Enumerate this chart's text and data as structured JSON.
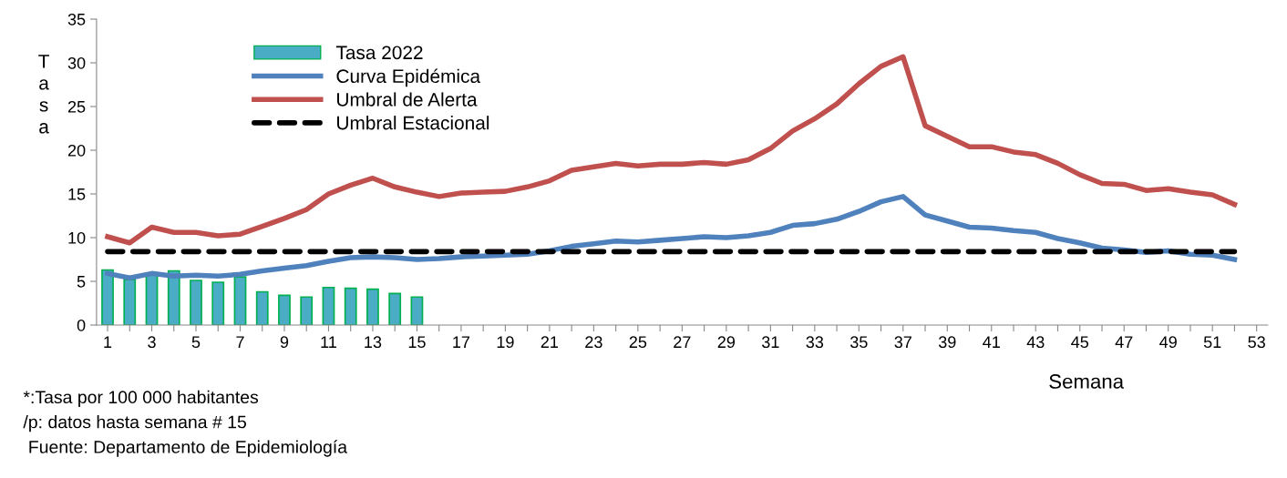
{
  "chart_data": {
    "type": "bar",
    "xlabel": "Semana",
    "ylabel": "Tasa",
    "categories": [
      "1",
      null,
      "3",
      null,
      "5",
      null,
      "7",
      null,
      "9",
      null,
      "11",
      null,
      "13",
      null,
      "15",
      null,
      "17",
      null,
      "19",
      null,
      "21",
      null,
      "23",
      null,
      "25",
      null,
      "27",
      null,
      "29",
      null,
      "31",
      null,
      "33",
      null,
      "35",
      null,
      "37",
      null,
      "39",
      null,
      "41",
      null,
      "43",
      null,
      "45",
      null,
      "47",
      null,
      "49",
      null,
      "51",
      null,
      "53"
    ],
    "series": [
      {
        "name": "Tasa 2022",
        "color": "#4bacc6",
        "values": [
          6.3,
          5.2,
          5.9,
          6.2,
          5.1,
          4.9,
          5.5,
          3.8,
          3.4,
          3.2,
          4.3,
          4.2,
          4.1,
          3.6,
          3.2,
          null,
          null,
          null,
          null,
          null,
          null,
          null,
          null,
          null,
          null,
          null,
          null,
          null,
          null,
          null,
          null,
          null,
          null,
          null,
          null,
          null,
          null,
          null,
          null,
          null,
          null,
          null,
          null,
          null,
          null,
          null,
          null,
          null,
          null,
          null,
          null,
          null,
          null
        ]
      },
      {
        "name": "Curva Epidémica",
        "type": "line",
        "color": "#4f81bd",
        "line_style": "solid",
        "values": [
          5.9,
          5.4,
          5.9,
          5.6,
          5.7,
          5.6,
          5.8,
          6.2,
          6.5,
          6.8,
          7.3,
          7.7,
          7.8,
          7.7,
          7.5,
          7.6,
          7.8,
          7.9,
          8.0,
          8.1,
          8.5,
          9.0,
          9.3,
          9.6,
          9.5,
          9.7,
          9.9,
          10.1,
          10.0,
          10.2,
          10.6,
          11.4,
          11.6,
          12.1,
          13.0,
          14.1,
          14.7,
          12.6,
          11.9,
          11.2,
          11.1,
          10.8,
          10.6,
          9.9,
          9.4,
          8.8,
          8.6,
          8.3,
          8.5,
          8.1,
          8.0,
          7.5,
          null
        ]
      },
      {
        "name": "Umbral de Alerta",
        "type": "line",
        "color": "#c0504d",
        "line_style": "solid",
        "values": [
          10.1,
          9.4,
          11.2,
          10.6,
          10.6,
          10.2,
          10.4,
          11.3,
          12.2,
          13.2,
          15.0,
          16.0,
          16.8,
          15.8,
          15.2,
          14.7,
          15.1,
          15.2,
          15.3,
          15.8,
          16.5,
          17.7,
          18.1,
          18.5,
          18.2,
          18.4,
          18.4,
          18.6,
          18.4,
          18.9,
          20.2,
          22.2,
          23.6,
          25.3,
          27.6,
          29.6,
          30.7,
          22.8,
          21.6,
          20.4,
          20.4,
          19.8,
          19.5,
          18.5,
          17.2,
          16.2,
          16.1,
          15.4,
          15.6,
          15.2,
          14.9,
          13.8,
          null
        ]
      },
      {
        "name": "Umbral Estacional",
        "type": "line",
        "color": "#000000",
        "line_style": "dashed",
        "values": [
          8.4,
          8.4,
          8.4,
          8.4,
          8.4,
          8.4,
          8.4,
          8.4,
          8.4,
          8.4,
          8.4,
          8.4,
          8.4,
          8.4,
          8.4,
          8.4,
          8.4,
          8.4,
          8.4,
          8.4,
          8.4,
          8.4,
          8.4,
          8.4,
          8.4,
          8.4,
          8.4,
          8.4,
          8.4,
          8.4,
          8.4,
          8.4,
          8.4,
          8.4,
          8.4,
          8.4,
          8.4,
          8.4,
          8.4,
          8.4,
          8.4,
          8.4,
          8.4,
          8.4,
          8.4,
          8.4,
          8.4,
          8.4,
          8.4,
          8.4,
          8.4,
          8.4,
          null
        ]
      }
    ],
    "ylim": [
      0,
      35
    ],
    "yticks": [
      0,
      5,
      10,
      15,
      20,
      25,
      30,
      35
    ],
    "grid": false,
    "legend": "top left",
    "annotations": [
      "*:Tasa por 100 000 habitantes",
      "/p: datos hasta semana # 15",
      " Fuente: Departamento de Epidemiología"
    ]
  }
}
